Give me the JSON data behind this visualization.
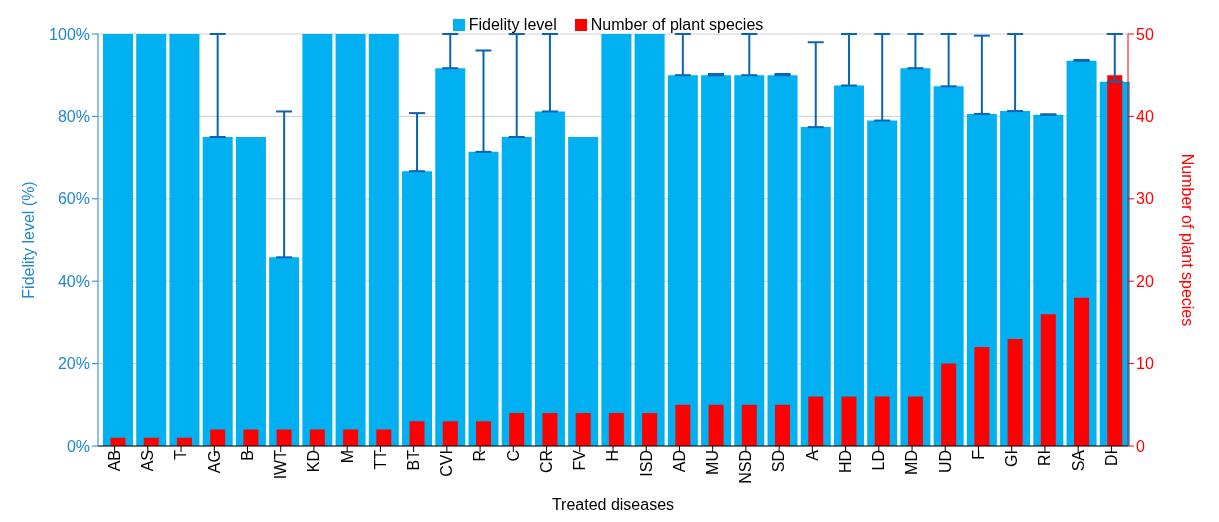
{
  "chart_data": {
    "type": "bar",
    "xlabel": "Treated diseases",
    "ylabel": "Fidelity level (%)",
    "y2label": "Number of plant species",
    "categories": [
      "AB",
      "AS",
      "T",
      "AG",
      "B",
      "IWT",
      "KD",
      "M",
      "TT",
      "BT",
      "CVI",
      "R",
      "C",
      "CR",
      "FV",
      "H",
      "ISD",
      "AD",
      "MU",
      "NSD",
      "SD",
      "A",
      "HD",
      "LD",
      "MD",
      "UD",
      "F",
      "GI",
      "RI",
      "SA",
      "DI"
    ],
    "series": [
      {
        "name": "Fidelity level",
        "color": "#00b0f0",
        "values": [
          100,
          100,
          100,
          75,
          75,
          45.8,
          100,
          100,
          100,
          66.7,
          91.7,
          71.4,
          75,
          81.2,
          75,
          100,
          100,
          90,
          90,
          90,
          90,
          77.4,
          87.5,
          79,
          91.7,
          87.3,
          80.6,
          81.3,
          80.4,
          93.5,
          88.4
        ],
        "errors": [
          null,
          null,
          null,
          [
            75,
            100
          ],
          null,
          [
            45.8,
            81.2
          ],
          null,
          null,
          null,
          [
            66.7,
            80.8
          ],
          [
            91.7,
            100
          ],
          [
            71.4,
            96
          ],
          [
            75,
            100
          ],
          [
            81.2,
            100
          ],
          null,
          null,
          null,
          [
            90,
            100
          ],
          [
            90,
            90.3
          ],
          [
            90,
            100
          ],
          [
            90,
            90.3
          ],
          [
            77.4,
            98
          ],
          [
            87.5,
            100
          ],
          [
            79,
            100
          ],
          [
            91.7,
            100
          ],
          [
            87.3,
            100
          ],
          [
            80.6,
            99.6
          ],
          [
            81.3,
            100
          ],
          [
            80.4,
            80.5
          ],
          [
            93.5,
            93.7
          ],
          [
            88.4,
            100
          ]
        ]
      },
      {
        "name": "Number of plant species",
        "color": "#ff0000",
        "axis": "y2",
        "values": [
          1,
          1,
          1,
          2,
          2,
          2,
          2,
          2,
          2,
          3,
          3,
          3,
          4,
          4,
          4,
          4,
          4,
          5,
          5,
          5,
          5,
          6,
          6,
          6,
          6,
          10,
          12,
          13,
          16,
          18,
          45
        ]
      }
    ],
    "ylim": [
      0,
      100
    ],
    "yticks": [
      {
        "value": 0,
        "label": "0%"
      },
      {
        "value": 20,
        "label": "20%"
      },
      {
        "value": 40,
        "label": "40%"
      },
      {
        "value": 60,
        "label": "60%"
      },
      {
        "value": 80,
        "label": "80%"
      },
      {
        "value": 100,
        "label": "100%"
      }
    ],
    "y2lim": [
      0,
      50
    ],
    "y2ticks": [
      0,
      10,
      20,
      30,
      40,
      50
    ],
    "grid": "y",
    "legend": "top"
  }
}
